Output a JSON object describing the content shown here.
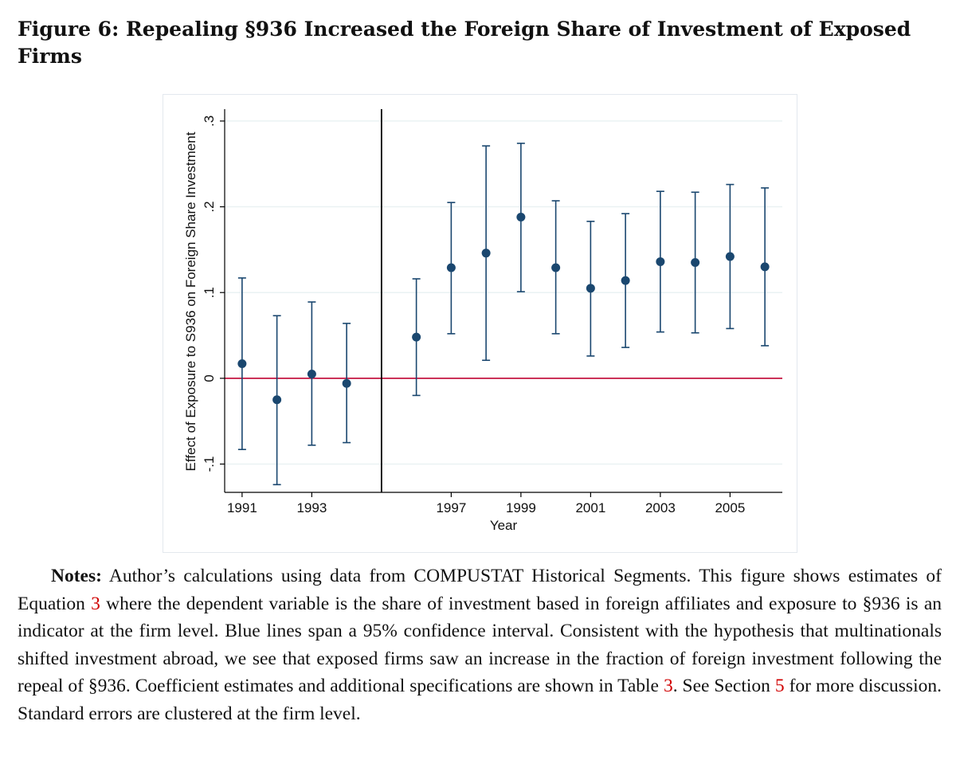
{
  "figure": {
    "title": "Figure 6:  Repealing §936 Increased the Foreign Share of Investment of Exposed Firms"
  },
  "notes": {
    "label": "Notes:",
    "part1": " Author’s calculations using data from COMPUSTAT Historical Segments.  This figure shows estimates of Equation ",
    "ref_equation": "3",
    "part2": " where the dependent variable is the share of investment based in foreign affiliates and exposure to §936 is an indicator at the firm level. Blue lines span a 95% confidence interval. Consistent with the hypothesis that multinationals shifted investment abroad, we see that exposed firms saw an increase in the fraction of foreign investment following the repeal of §936. Coefficient estimates and additional specifications are shown in Table ",
    "ref_table": "3",
    "part3": ".  See Section ",
    "ref_section": "5",
    "part4": " for more discussion.  Standard errors are clustered at the firm level."
  },
  "chart_data": {
    "type": "scatter",
    "xlabel": "Year",
    "ylabel": "Effect of Exposure to S936 on Foreign Share Investment",
    "x_ticks": [
      1991,
      1993,
      1997,
      1999,
      2001,
      2003,
      2005
    ],
    "y_ticks": [
      -0.1,
      0,
      0.1,
      0.2,
      0.3
    ],
    "y_tick_labels": [
      "-.1",
      "0",
      ".1",
      ".2",
      ".3"
    ],
    "xlim": [
      1990.5,
      2006.5
    ],
    "ylim": [
      -0.133,
      0.312
    ],
    "grid": true,
    "reference_line_y": 0,
    "event_line_x": 1995,
    "colors": {
      "point": "#1a476f",
      "zero_line": "#c10534",
      "event_line": "#000000",
      "grid": "#eaf2f3"
    },
    "points": [
      {
        "x": 1991,
        "y": 0.017,
        "lo": -0.083,
        "hi": 0.117
      },
      {
        "x": 1992,
        "y": -0.025,
        "lo": -0.124,
        "hi": 0.073
      },
      {
        "x": 1993,
        "y": 0.005,
        "lo": -0.078,
        "hi": 0.089
      },
      {
        "x": 1994,
        "y": -0.006,
        "lo": -0.075,
        "hi": 0.064
      },
      {
        "x": 1996,
        "y": 0.048,
        "lo": -0.02,
        "hi": 0.116
      },
      {
        "x": 1997,
        "y": 0.129,
        "lo": 0.052,
        "hi": 0.205
      },
      {
        "x": 1998,
        "y": 0.146,
        "lo": 0.021,
        "hi": 0.271
      },
      {
        "x": 1999,
        "y": 0.188,
        "lo": 0.101,
        "hi": 0.274
      },
      {
        "x": 2000,
        "y": 0.129,
        "lo": 0.052,
        "hi": 0.207
      },
      {
        "x": 2001,
        "y": 0.105,
        "lo": 0.026,
        "hi": 0.183
      },
      {
        "x": 2002,
        "y": 0.114,
        "lo": 0.036,
        "hi": 0.192
      },
      {
        "x": 2003,
        "y": 0.136,
        "lo": 0.054,
        "hi": 0.218
      },
      {
        "x": 2004,
        "y": 0.135,
        "lo": 0.053,
        "hi": 0.217
      },
      {
        "x": 2005,
        "y": 0.142,
        "lo": 0.058,
        "hi": 0.226
      },
      {
        "x": 2006,
        "y": 0.13,
        "lo": 0.038,
        "hi": 0.222
      }
    ]
  }
}
